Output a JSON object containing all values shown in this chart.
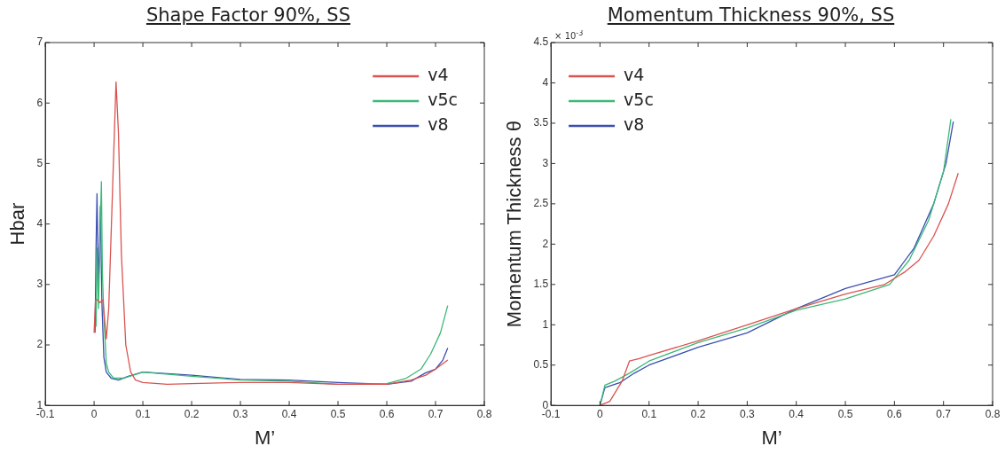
{
  "chart_data": [
    {
      "type": "line",
      "title": "Shape Factor 90%, SS",
      "xlabel": "M’",
      "ylabel": "Hbar",
      "xlim": [
        -0.1,
        0.8
      ],
      "xticks": [
        -0.1,
        0,
        0.1,
        0.2,
        0.3,
        0.4,
        0.5,
        0.6,
        0.7,
        0.8
      ],
      "ylim": [
        1,
        7
      ],
      "yticks": [
        1,
        2,
        3,
        4,
        5,
        6,
        7
      ],
      "grid": false,
      "legend": "top right",
      "marker": "none",
      "line_style": "solid",
      "series": [
        {
          "name": "v4",
          "color": "#d9534f",
          "x": [
            0,
            0.003,
            0.006,
            0.012,
            0.018,
            0.025,
            0.03,
            0.038,
            0.045,
            0.05,
            0.056,
            0.065,
            0.075,
            0.085,
            0.1,
            0.15,
            0.2,
            0.3,
            0.4,
            0.5,
            0.6,
            0.65,
            0.68,
            0.7,
            0.725
          ],
          "values": [
            2.2,
            2.75,
            2.75,
            2.7,
            2.75,
            2.1,
            2.6,
            4.6,
            6.35,
            5.5,
            3.5,
            2.0,
            1.55,
            1.42,
            1.38,
            1.35,
            1.36,
            1.38,
            1.38,
            1.35,
            1.35,
            1.42,
            1.5,
            1.6,
            1.75
          ]
        },
        {
          "name": "v5c",
          "color": "#3cb878",
          "x": [
            0.004,
            0.006,
            0.009,
            0.012,
            0.015,
            0.017,
            0.02,
            0.025,
            0.03,
            0.04,
            0.06,
            0.08,
            0.1,
            0.2,
            0.3,
            0.4,
            0.5,
            0.6,
            0.64,
            0.67,
            0.69,
            0.71,
            0.725
          ],
          "values": [
            2.3,
            3.6,
            2.6,
            3.7,
            4.7,
            3.2,
            2.5,
            1.7,
            1.55,
            1.45,
            1.45,
            1.5,
            1.55,
            1.48,
            1.42,
            1.4,
            1.35,
            1.36,
            1.45,
            1.6,
            1.85,
            2.2,
            2.65
          ]
        },
        {
          "name": "v8",
          "color": "#3a4fb0",
          "x": [
            0.002,
            0.004,
            0.006,
            0.009,
            0.011,
            0.013,
            0.016,
            0.02,
            0.025,
            0.035,
            0.05,
            0.07,
            0.1,
            0.2,
            0.3,
            0.4,
            0.5,
            0.6,
            0.65,
            0.68,
            0.7,
            0.715,
            0.725
          ],
          "values": [
            2.2,
            3.6,
            4.5,
            3.0,
            3.5,
            4.3,
            2.7,
            1.8,
            1.55,
            1.45,
            1.42,
            1.48,
            1.55,
            1.5,
            1.43,
            1.42,
            1.38,
            1.35,
            1.4,
            1.54,
            1.6,
            1.75,
            1.95
          ]
        }
      ]
    },
    {
      "type": "line",
      "title": "Momentum Thickness 90%, SS",
      "xlabel": "M’",
      "ylabel": "Momentum Thickness θ",
      "annotations": [
        "× 10$^{-3}$"
      ],
      "xlim": [
        -0.1,
        0.8
      ],
      "xticks": [
        -0.1,
        0,
        0.1,
        0.2,
        0.3,
        0.4,
        0.5,
        0.6,
        0.7,
        0.8
      ],
      "ylim": [
        0,
        4.5
      ],
      "yticks": [
        0,
        0.5,
        1,
        1.5,
        2,
        2.5,
        3,
        3.5,
        4,
        4.5
      ],
      "grid": false,
      "legend": "top left",
      "marker": "none",
      "line_style": "solid",
      "series": [
        {
          "name": "v4",
          "color": "#d9534f",
          "x": [
            0,
            0.02,
            0.045,
            0.06,
            0.08,
            0.1,
            0.2,
            0.3,
            0.4,
            0.5,
            0.58,
            0.62,
            0.65,
            0.68,
            0.71,
            0.73
          ],
          "values": [
            0,
            0.05,
            0.3,
            0.55,
            0.58,
            0.62,
            0.8,
            1.0,
            1.2,
            1.38,
            1.5,
            1.65,
            1.8,
            2.1,
            2.5,
            2.88
          ]
        },
        {
          "name": "v5c",
          "color": "#3cb878",
          "x": [
            0,
            0.01,
            0.03,
            0.06,
            0.1,
            0.2,
            0.3,
            0.4,
            0.5,
            0.59,
            0.63,
            0.67,
            0.7,
            0.715
          ],
          "values": [
            0,
            0.25,
            0.3,
            0.4,
            0.55,
            0.78,
            0.96,
            1.18,
            1.32,
            1.5,
            1.8,
            2.3,
            2.9,
            3.55
          ]
        },
        {
          "name": "v8",
          "color": "#3a4fb0",
          "x": [
            0,
            0.01,
            0.04,
            0.07,
            0.1,
            0.2,
            0.3,
            0.4,
            0.5,
            0.6,
            0.64,
            0.68,
            0.705,
            0.72
          ],
          "values": [
            0,
            0.22,
            0.28,
            0.4,
            0.5,
            0.72,
            0.9,
            1.2,
            1.45,
            1.62,
            1.95,
            2.5,
            3.0,
            3.52
          ]
        }
      ]
    }
  ]
}
